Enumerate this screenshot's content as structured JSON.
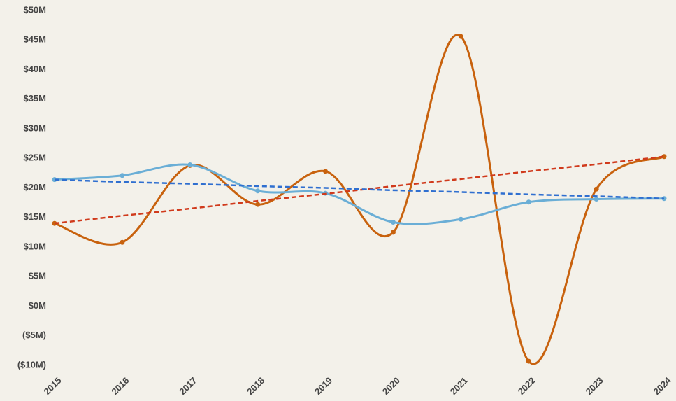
{
  "chart_data": {
    "type": "line",
    "categories": [
      "2015",
      "2016",
      "2017",
      "2018",
      "2019",
      "2020",
      "2021",
      "2022",
      "2023",
      "2024"
    ],
    "series": [
      {
        "color": "#c8620e",
        "values": [
          14.0,
          10.8,
          23.8,
          17.2,
          22.8,
          12.5,
          45.6,
          -9.3,
          19.8,
          25.3
        ],
        "markers": true,
        "smooth": true,
        "dashed": false
      },
      {
        "color": "#6aaed6",
        "values": [
          21.4,
          22.1,
          23.9,
          19.5,
          19.1,
          14.2,
          14.7,
          17.6,
          18.1,
          18.2
        ],
        "markers": true,
        "smooth": true,
        "dashed": false
      },
      {
        "color": "#d03a1c",
        "values": [
          14.0,
          15.3,
          16.5,
          17.8,
          19.0,
          20.3,
          21.5,
          22.8,
          24.0,
          25.3
        ],
        "markers": false,
        "smooth": false,
        "dashed": true
      },
      {
        "color": "#2f6fd0",
        "values": [
          21.4,
          21.0,
          20.7,
          20.3,
          20.0,
          19.6,
          19.3,
          18.9,
          18.6,
          18.2
        ],
        "markers": false,
        "smooth": false,
        "dashed": true
      }
    ],
    "ylim": [
      -10,
      50
    ],
    "yticks": [
      {
        "value": -10,
        "label": "($10M)"
      },
      {
        "value": -5,
        "label": "($5M)"
      },
      {
        "value": 0,
        "label": "$0M"
      },
      {
        "value": 5,
        "label": "$5M"
      },
      {
        "value": 10,
        "label": "$10M"
      },
      {
        "value": 15,
        "label": "$15M"
      },
      {
        "value": 20,
        "label": "$20M"
      },
      {
        "value": 25,
        "label": "$25M"
      },
      {
        "value": 30,
        "label": "$30M"
      },
      {
        "value": 35,
        "label": "$35M"
      },
      {
        "value": 40,
        "label": "$40M"
      },
      {
        "value": 45,
        "label": "$45M"
      },
      {
        "value": 50,
        "label": "$50M"
      }
    ],
    "grid": false
  }
}
